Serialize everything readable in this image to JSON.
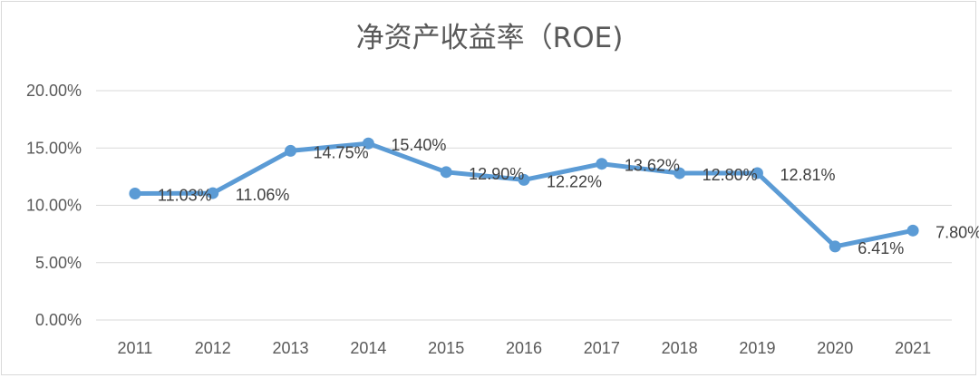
{
  "chart_data": {
    "type": "line",
    "title": "净资产收益率（ROE)",
    "xlabel": "",
    "ylabel": "",
    "categories": [
      "2011",
      "2012",
      "2013",
      "2014",
      "2015",
      "2016",
      "2017",
      "2018",
      "2019",
      "2020",
      "2021"
    ],
    "series": [
      {
        "name": "ROE",
        "values": [
          11.03,
          11.06,
          14.75,
          15.4,
          12.9,
          12.22,
          13.62,
          12.8,
          12.81,
          6.41,
          7.8
        ],
        "labels": [
          "11.03%",
          "11.06%",
          "14.75%",
          "15.40%",
          "12.90%",
          "12.22%",
          "13.62%",
          "12.80%",
          "12.81%",
          "6.41%",
          "7.80%"
        ],
        "color": "#5b9bd5"
      }
    ],
    "ylim": [
      0,
      20
    ],
    "yticks": [
      0,
      5,
      10,
      15,
      20
    ],
    "ytick_labels": [
      "0.00%",
      "5.00%",
      "10.00%",
      "15.00%",
      "20.00%"
    ],
    "grid": true,
    "legend": "none"
  }
}
